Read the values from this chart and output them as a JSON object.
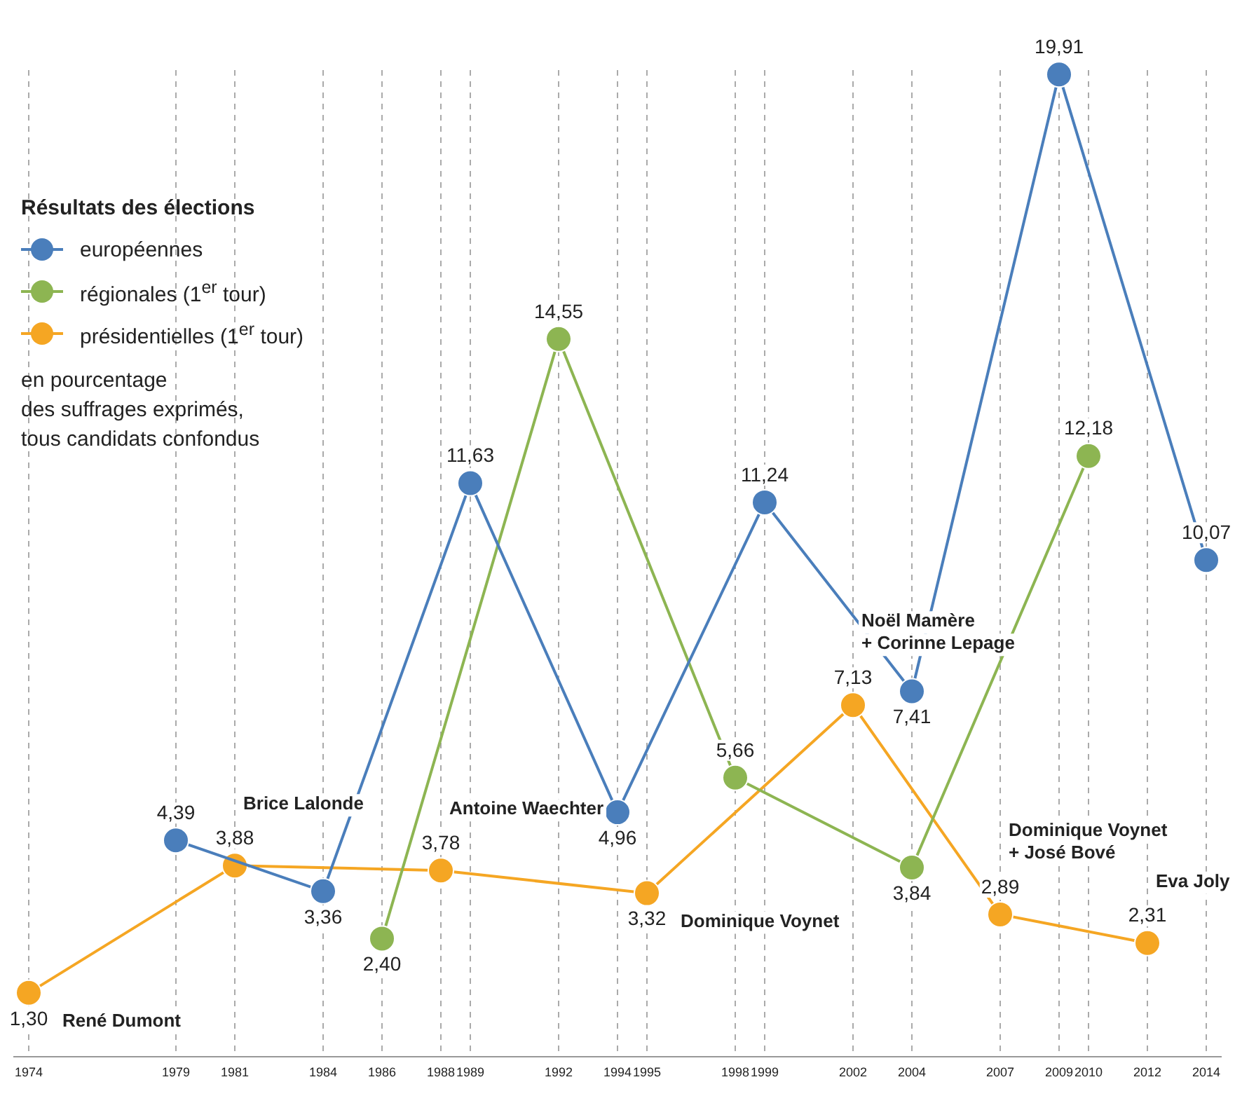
{
  "chart_data": {
    "type": "line",
    "legend_title": "Résultats des élections",
    "legend": "top left",
    "marker": "circle",
    "line_style": "solid",
    "grid": "x",
    "tick_labels": "x",
    "xlim": [
      1973.5,
      2014.5
    ],
    "xticks": [
      1974,
      1979,
      1981,
      1984,
      1986,
      1988,
      1989,
      1992,
      1994,
      1995,
      1998,
      1999,
      2002,
      2004,
      2007,
      2009,
      2010,
      2012,
      2014
    ],
    "series": [
      {
        "name": "européennes",
        "color": "#4a7ebb",
        "x": [
          1979,
          1984,
          1989,
          1994,
          1999,
          2004,
          2009,
          2014
        ],
        "values": [
          4.39,
          3.36,
          11.63,
          4.96,
          11.24,
          7.41,
          19.91,
          10.07
        ],
        "value_labels": [
          "4,39",
          "3,36",
          "11,63",
          "4,96",
          "11,24",
          "7,41",
          "19,91",
          "10,07"
        ]
      },
      {
        "name": "régionales (1$^{er}$ tour)",
        "color": "#8db552",
        "x": [
          1986,
          1992,
          1998,
          2004,
          2010
        ],
        "values": [
          2.4,
          14.55,
          5.66,
          3.84,
          12.18
        ],
        "value_labels": [
          "2,40",
          "14,55",
          "5,66",
          "3,84",
          "12,18"
        ]
      },
      {
        "name": "présidentielles (1$^{er}$ tour)",
        "color": "#f5a623",
        "x": [
          1974,
          1981,
          1988,
          1995,
          2002,
          2007,
          2012
        ],
        "values": [
          1.3,
          3.88,
          3.78,
          3.32,
          7.13,
          2.89,
          2.31
        ],
        "value_labels": [
          "1,30",
          "3,88",
          "3,78",
          "3,32",
          "7,13",
          "2,89",
          "2,31"
        ]
      }
    ],
    "annotations": [
      "en pourcentage\ndes suffrages exprimés,\ntous candidats confondus",
      {
        "text": "René Dumont",
        "x": 1974,
        "y": 1.3
      },
      {
        "text": "Brice Lalonde",
        "x": 1981,
        "y": 3.88
      },
      {
        "text": "Antoine Waechter",
        "x": 1988,
        "y": 3.78
      },
      {
        "text": "Dominique Voynet",
        "x": 1995,
        "y": 3.32
      },
      {
        "text": "Noël Mamère\n+ Corinne Lepage",
        "x": 2002,
        "y": 7.13
      },
      {
        "text": "Dominique Voynet\n+ José Bové",
        "x": 2007,
        "y": 2.89
      },
      {
        "text": "Eva Joly",
        "x": 2012,
        "y": 2.31
      }
    ]
  }
}
